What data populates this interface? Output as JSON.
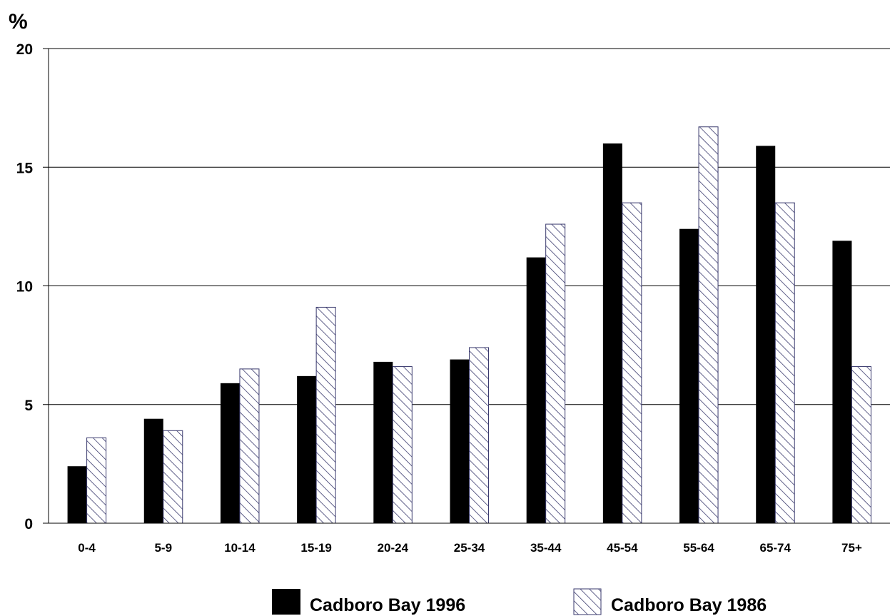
{
  "chart_data": {
    "type": "bar",
    "title": "",
    "xlabel": "",
    "ylabel": "%",
    "ylim": [
      0,
      20
    ],
    "yticks": [
      0,
      5,
      10,
      15,
      20
    ],
    "grid": true,
    "legend_position": "bottom",
    "categories": [
      "0-4",
      "5-9",
      "10-14",
      "15-19",
      "20-24",
      "25-34",
      "35-44",
      "45-54",
      "55-64",
      "65-74",
      "75+"
    ],
    "series": [
      {
        "name": "Cadboro Bay 1996",
        "color": "#000000",
        "pattern": "solid",
        "values": [
          2.4,
          4.4,
          5.9,
          6.2,
          6.8,
          6.9,
          11.2,
          16.0,
          12.4,
          15.9,
          11.9
        ]
      },
      {
        "name": "Cadboro Bay 1986",
        "color": "#3a3a6e",
        "pattern": "diagonal-hatch",
        "values": [
          3.6,
          3.9,
          6.5,
          9.1,
          6.6,
          7.4,
          12.6,
          13.5,
          16.7,
          13.5,
          6.6
        ]
      }
    ]
  }
}
